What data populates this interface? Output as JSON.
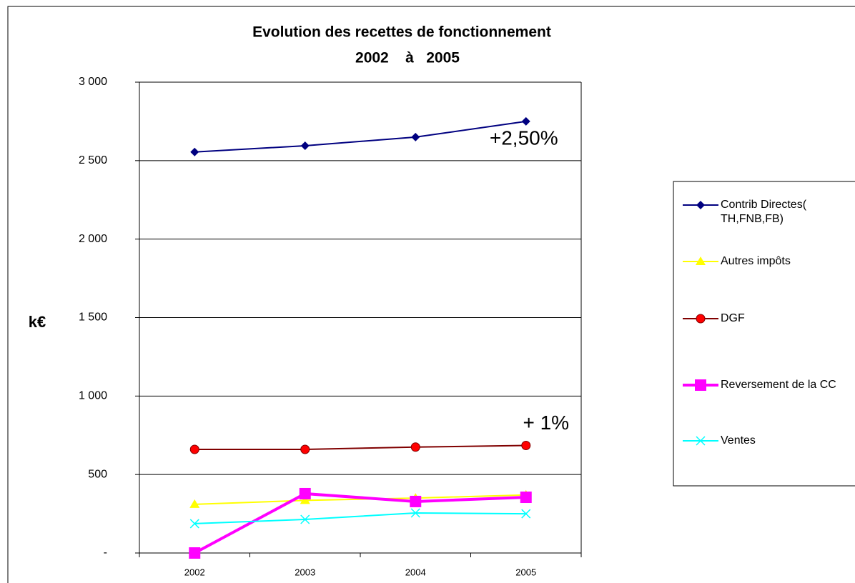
{
  "chart_data": {
    "type": "line",
    "title": [
      "Evolution des recettes de fonctionnement",
      "2002    à   2005"
    ],
    "y_label": "k€",
    "categories": [
      "2002",
      "2003",
      "2004",
      "2005"
    ],
    "series": [
      {
        "name": "Contrib Directes( TH,FNB,FB)",
        "color": "#000080",
        "marker": "diamond",
        "values": [
          2555,
          2595,
          2650,
          2750
        ]
      },
      {
        "name": "Autres impôts",
        "color": "#ffff00",
        "marker": "triangle",
        "values": [
          310,
          335,
          350,
          370
        ]
      },
      {
        "name": "DGF",
        "color": "#800000",
        "marker_color": "#ff0000",
        "marker": "circle",
        "values": [
          660,
          660,
          675,
          685
        ]
      },
      {
        "name": "Reversement de la CC",
        "color": "#ff00ff",
        "marker": "square",
        "values": [
          0,
          378,
          328,
          355
        ]
      },
      {
        "name": "Ventes",
        "color": "#00ffff",
        "marker": "x",
        "values": [
          187,
          214,
          255,
          250
        ]
      }
    ],
    "annotations": [
      {
        "text": "+2,50%",
        "series": 0,
        "index": 3
      },
      {
        "text": "+ 1%",
        "series": 2,
        "index": 3
      }
    ],
    "ylim": [
      0,
      3000
    ],
    "yticks": [
      {
        "value": 0,
        "label": "-"
      },
      500,
      {
        "value": 1000,
        "label": "1 000"
      },
      {
        "value": 1500,
        "label": "1 500"
      },
      {
        "value": 2000,
        "label": "2 000"
      },
      {
        "value": 2500,
        "label": "2 500"
      },
      {
        "value": 3000,
        "label": "3 000"
      }
    ],
    "grid": true,
    "legend": "right"
  }
}
